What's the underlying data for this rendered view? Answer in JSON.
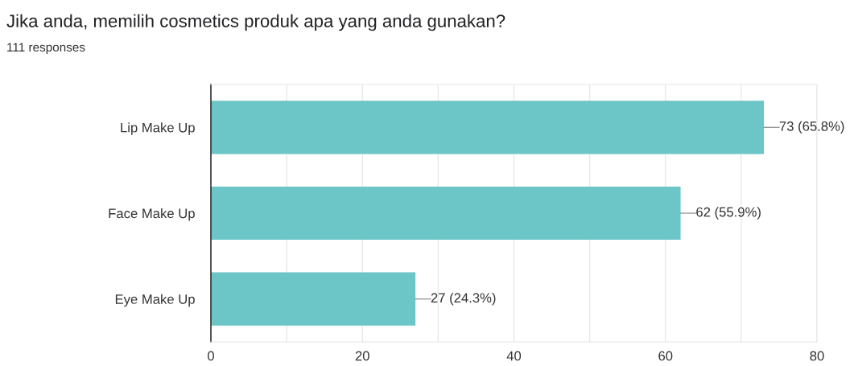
{
  "chart_data": {
    "type": "bar",
    "orientation": "horizontal",
    "title": "Jika anda, memilih cosmetics produk apa yang anda gunakan?",
    "subtitle": "111 responses",
    "categories": [
      "Lip Make Up",
      "Face Make Up",
      "Eye Make Up"
    ],
    "values": [
      73,
      62,
      27
    ],
    "value_labels": [
      "73 (65.8%)",
      "62 (55.9%)",
      "27 (24.3%)"
    ],
    "color": "#6cc5c6",
    "xlim": [
      0,
      80
    ],
    "xticks": [
      0,
      {
        "value": 10,
        "label": null
      },
      20,
      {
        "value": 30,
        "label": null
      },
      40,
      {
        "value": 50,
        "label": null
      },
      60,
      {
        "value": 70,
        "label": null
      },
      80
    ],
    "grid": "x",
    "legend": false
  }
}
